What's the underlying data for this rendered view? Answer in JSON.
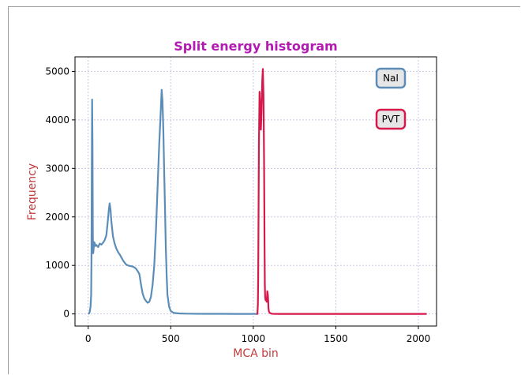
{
  "chart_data": {
    "type": "line",
    "title": "Split energy histogram",
    "xlabel": "MCA bin",
    "ylabel": "Frequency",
    "xlim": [
      -80,
      2110
    ],
    "ylim": [
      -250,
      5300
    ],
    "xticks": [
      0,
      500,
      1000,
      1500,
      2000
    ],
    "yticks": [
      0,
      1000,
      2000,
      3000,
      4000,
      5000
    ],
    "grid": true,
    "legend_placement": "top-right",
    "colors": {
      "title": "#b21ab2",
      "axis_label": "#c23b3b",
      "grid": "#c8c8e6"
    },
    "series": [
      {
        "name": "NaI",
        "color": "#5b8db8",
        "x": [
          0,
          5,
          10,
          14,
          18,
          20,
          22,
          24,
          26,
          28,
          30,
          32,
          34,
          36,
          40,
          45,
          50,
          60,
          70,
          80,
          90,
          100,
          110,
          120,
          125,
          130,
          135,
          140,
          145,
          150,
          160,
          170,
          180,
          190,
          200,
          210,
          220,
          230,
          240,
          250,
          260,
          270,
          280,
          290,
          300,
          310,
          320,
          330,
          340,
          350,
          360,
          370,
          380,
          390,
          400,
          410,
          420,
          430,
          440,
          445,
          450,
          455,
          460,
          465,
          470,
          475,
          480,
          490,
          500,
          520,
          550,
          600,
          700,
          800,
          900,
          1000,
          1020
        ],
        "y": [
          0,
          10,
          50,
          150,
          400,
          1200,
          3000,
          4420,
          3400,
          1600,
          1250,
          1300,
          1380,
          1480,
          1450,
          1400,
          1420,
          1380,
          1450,
          1430,
          1470,
          1520,
          1620,
          1950,
          2150,
          2280,
          2150,
          1920,
          1750,
          1600,
          1450,
          1350,
          1280,
          1230,
          1170,
          1110,
          1060,
          1020,
          1000,
          990,
          985,
          975,
          960,
          930,
          880,
          820,
          600,
          420,
          320,
          270,
          230,
          250,
          350,
          600,
          1000,
          1700,
          2600,
          3500,
          4200,
          4620,
          4400,
          3800,
          3000,
          2200,
          1400,
          800,
          400,
          150,
          60,
          20,
          10,
          5,
          3,
          2,
          0,
          0,
          0
        ]
      },
      {
        "name": "PVT",
        "color": "#d6194a",
        "x": [
          1020,
          1025,
          1028,
          1030,
          1034,
          1038,
          1042,
          1046,
          1050,
          1054,
          1058,
          1062,
          1065,
          1068,
          1070,
          1072,
          1075,
          1078,
          1082,
          1085,
          1088,
          1090,
          1092,
          1095,
          1100,
          1110,
          1120,
          1150,
          1200,
          1300,
          1500,
          1700,
          1900,
          2050
        ],
        "y": [
          0,
          0,
          200,
          800,
          3500,
          4580,
          4300,
          3800,
          4200,
          4800,
          5050,
          4500,
          3200,
          1500,
          600,
          350,
          280,
          300,
          250,
          470,
          400,
          280,
          120,
          50,
          20,
          5,
          2,
          0,
          0,
          0,
          0,
          0,
          0,
          0
        ]
      }
    ]
  }
}
